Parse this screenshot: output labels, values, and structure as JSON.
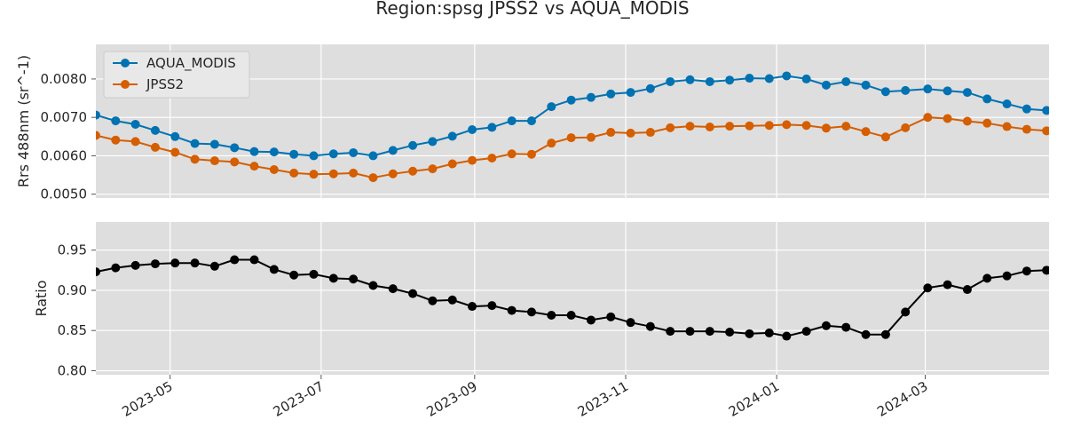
{
  "chart_data": {
    "type": "line",
    "title": "Region:spsg JPSS2 vs AQUA_MODIS",
    "x": [
      "2023-04-01",
      "2023-04-09",
      "2023-04-17",
      "2023-04-25",
      "2023-05-03",
      "2023-05-11",
      "2023-05-19",
      "2023-05-27",
      "2023-06-04",
      "2023-06-12",
      "2023-06-20",
      "2023-06-28",
      "2023-07-06",
      "2023-07-14",
      "2023-07-22",
      "2023-07-30",
      "2023-08-07",
      "2023-08-15",
      "2023-08-23",
      "2023-08-31",
      "2023-09-08",
      "2023-09-16",
      "2023-09-24",
      "2023-10-02",
      "2023-10-10",
      "2023-10-18",
      "2023-10-26",
      "2023-11-03",
      "2023-11-11",
      "2023-11-19",
      "2023-11-27",
      "2023-12-05",
      "2023-12-13",
      "2023-12-21",
      "2023-12-29",
      "2024-01-05",
      "2024-01-13",
      "2024-01-21",
      "2024-01-29",
      "2024-02-06",
      "2024-02-14",
      "2024-02-22",
      "2024-03-02",
      "2024-03-10",
      "2024-03-18",
      "2024-03-26",
      "2024-04-03",
      "2024-04-11",
      "2024-04-19"
    ],
    "x_ticks": [
      "2023-05",
      "2023-07",
      "2023-09",
      "2023-11",
      "2024-01",
      "2024-03"
    ],
    "x_range": [
      "2023-04-01",
      "2024-04-20"
    ],
    "grid": true,
    "panels": [
      {
        "ylabel": "Rrs 488nm (sr^-1)",
        "ylim": [
          0.0049,
          0.0089
        ],
        "yticks": [
          "0.0050",
          "0.0060",
          "0.0070",
          "0.0080"
        ],
        "legend_position": "top-left",
        "series": [
          {
            "name": "AQUA_MODIS",
            "color": "#0072B2",
            "values": [
              0.00706,
              0.00691,
              0.00682,
              0.00666,
              0.0065,
              0.00632,
              0.0063,
              0.00621,
              0.00611,
              0.0061,
              0.00604,
              0.006,
              0.00605,
              0.00608,
              0.006,
              0.00614,
              0.00627,
              0.00637,
              0.00651,
              0.00668,
              0.00674,
              0.00691,
              0.00691,
              0.00728,
              0.00745,
              0.00752,
              0.00761,
              0.00765,
              0.00775,
              0.00793,
              0.00798,
              0.00793,
              0.00797,
              0.00802,
              0.00801,
              0.00808,
              0.008,
              0.00784,
              0.00793,
              0.00784,
              0.00767,
              0.0077,
              0.00774,
              0.00769,
              0.00765,
              0.00748,
              0.00735,
              0.00722,
              0.00718
            ]
          },
          {
            "name": "JPSS2",
            "color": "#D55E00",
            "values": [
              0.00653,
              0.00641,
              0.00637,
              0.00622,
              0.00609,
              0.00591,
              0.00587,
              0.00584,
              0.00573,
              0.00564,
              0.00555,
              0.00552,
              0.00553,
              0.00555,
              0.00543,
              0.00553,
              0.0056,
              0.00566,
              0.00579,
              0.00588,
              0.00594,
              0.00605,
              0.00604,
              0.00633,
              0.00647,
              0.00648,
              0.00661,
              0.00659,
              0.00661,
              0.00673,
              0.00677,
              0.00675,
              0.00677,
              0.00678,
              0.00679,
              0.00681,
              0.00679,
              0.00672,
              0.00677,
              0.00663,
              0.00649,
              0.00673,
              0.007,
              0.00697,
              0.0069,
              0.00685,
              0.00676,
              0.00669,
              0.00665
            ]
          }
        ]
      },
      {
        "ylabel": "Ratio",
        "ylim": [
          0.795,
          0.985
        ],
        "yticks": [
          "0.80",
          "0.85",
          "0.90",
          "0.95"
        ],
        "series": [
          {
            "name": "",
            "color": "#000000",
            "values": [
              0.923,
              0.928,
              0.931,
              0.933,
              0.934,
              0.934,
              0.93,
              0.938,
              0.938,
              0.926,
              0.919,
              0.92,
              0.915,
              0.914,
              0.906,
              0.902,
              0.896,
              0.887,
              0.888,
              0.88,
              0.881,
              0.875,
              0.873,
              0.869,
              0.869,
              0.863,
              0.867,
              0.86,
              0.855,
              0.849,
              0.849,
              0.849,
              0.848,
              0.846,
              0.847,
              0.843,
              0.849,
              0.856,
              0.854,
              0.845,
              0.845,
              0.873,
              0.903,
              0.907,
              0.901,
              0.915,
              0.918,
              0.924,
              0.925
            ]
          }
        ]
      }
    ]
  }
}
